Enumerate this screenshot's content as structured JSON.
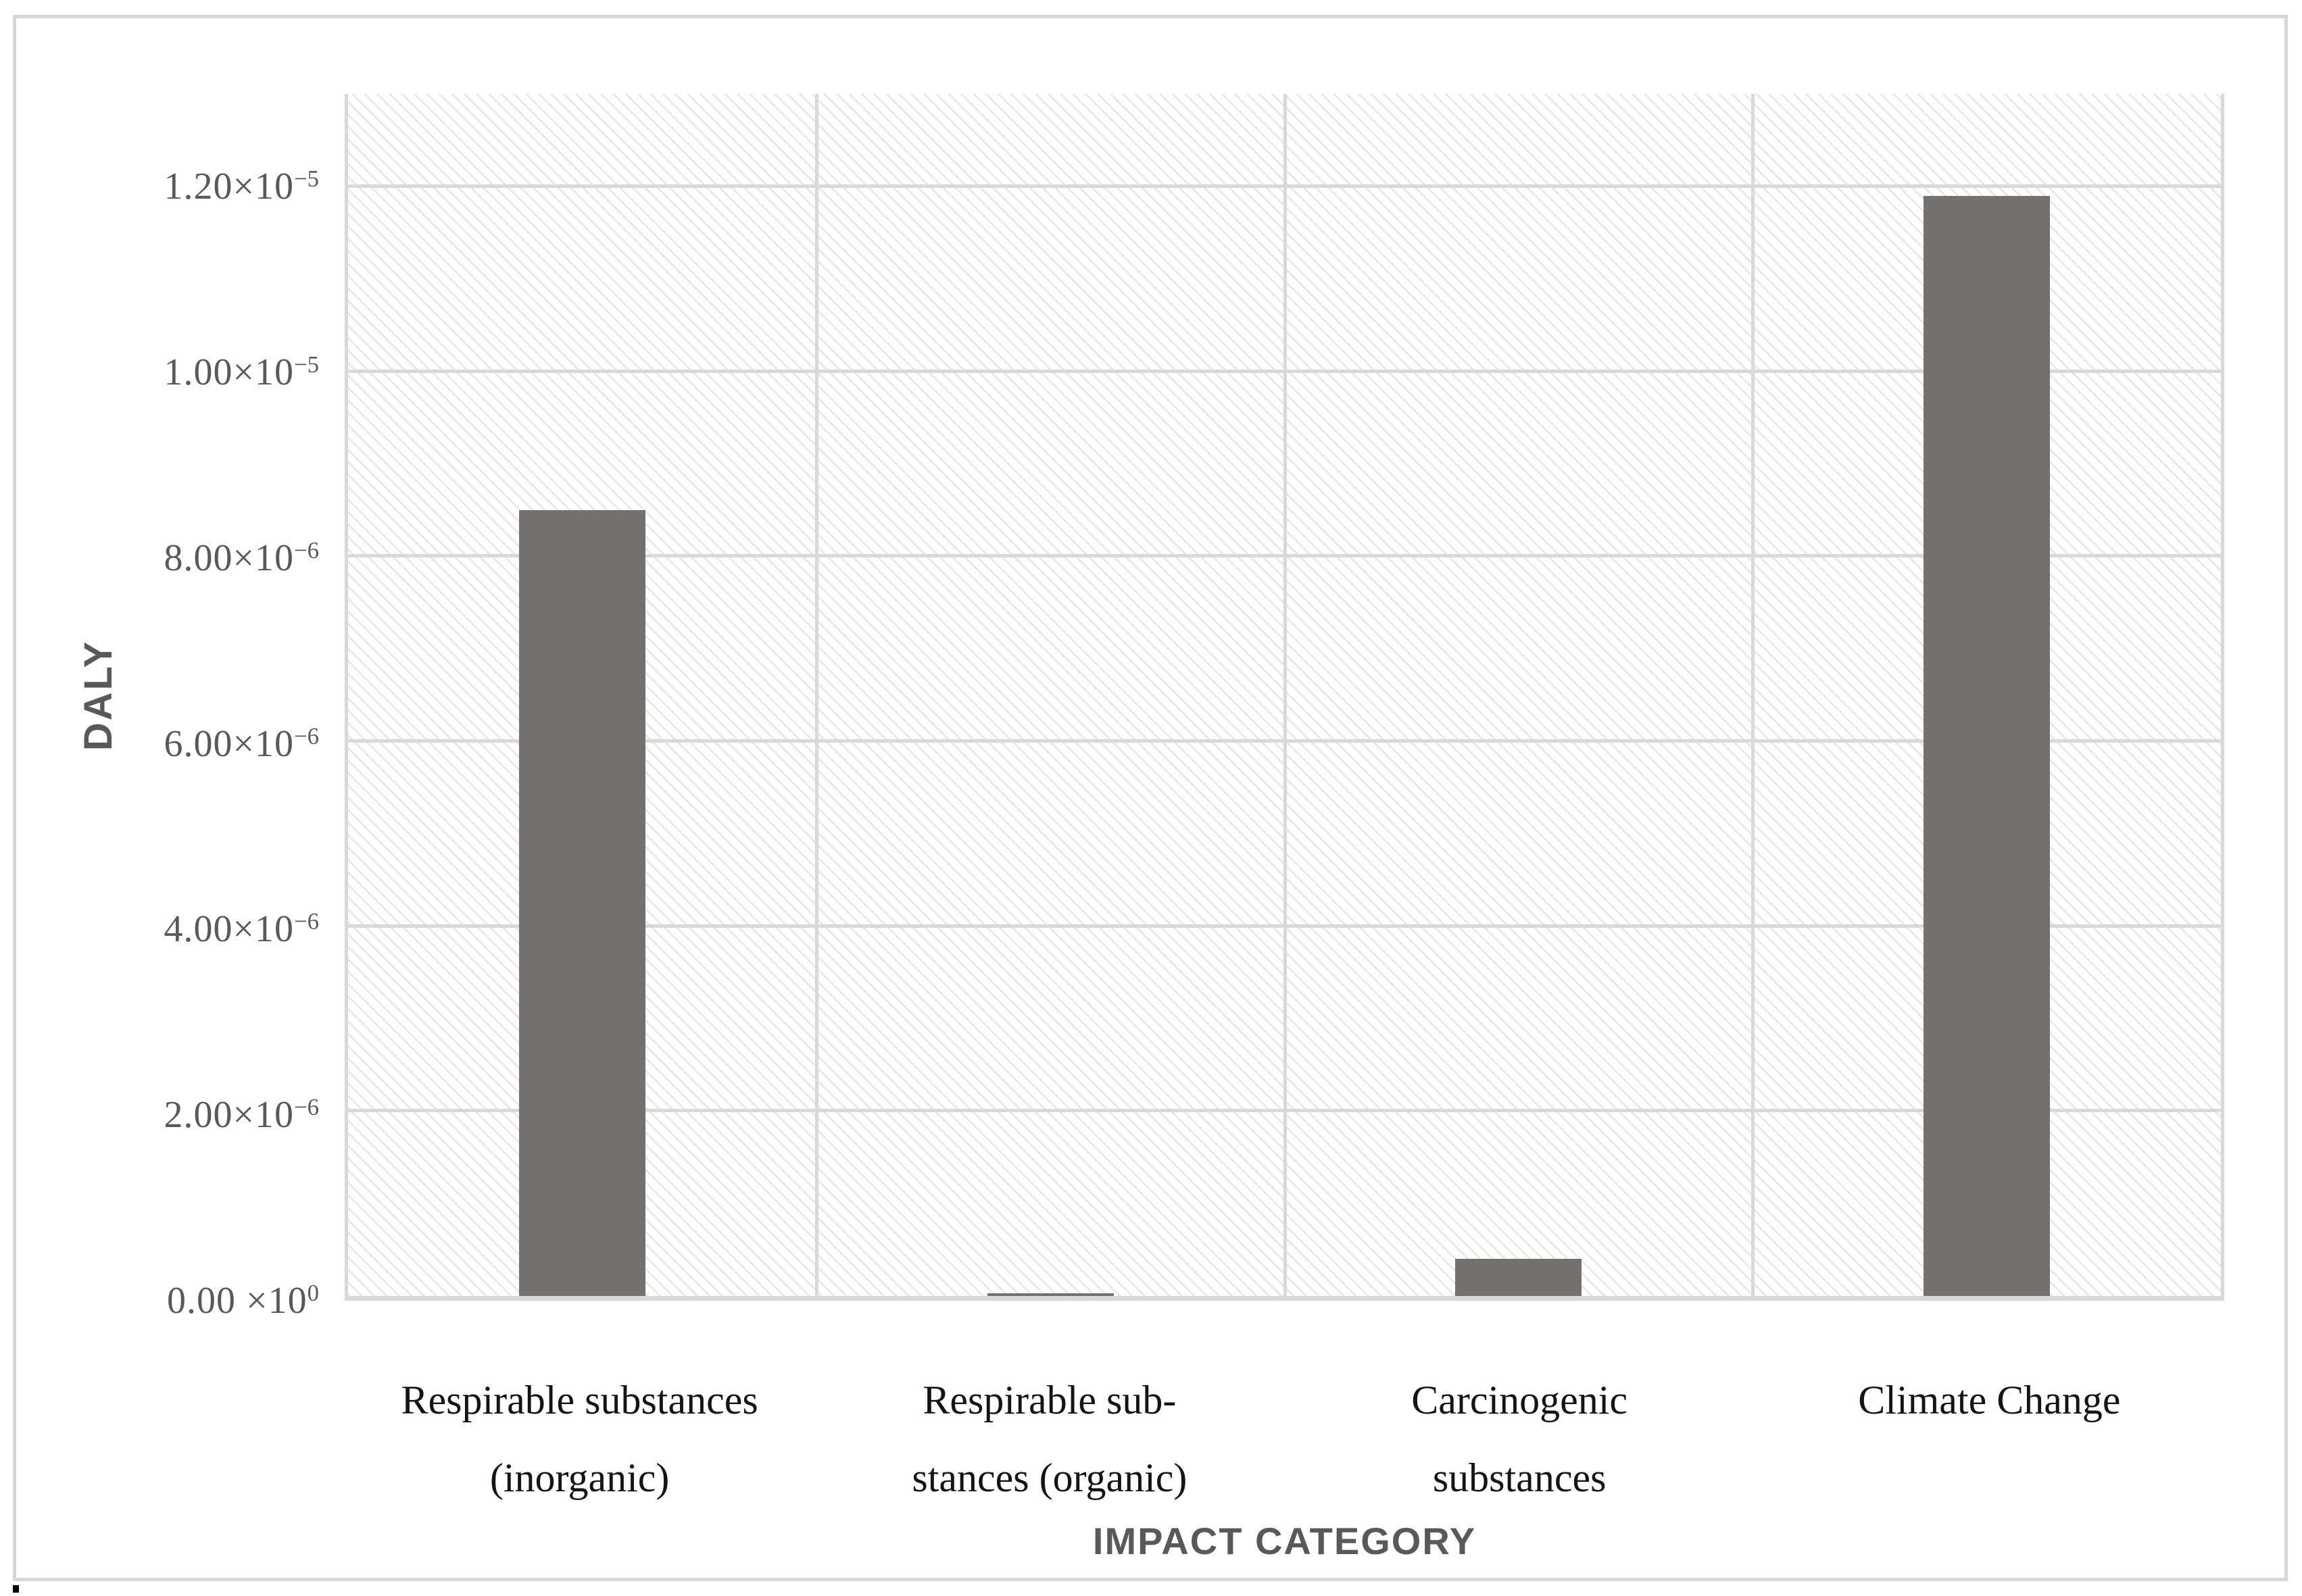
{
  "page": {
    "background_color": "#ffffff",
    "frame_border_color": "#d7d7d7"
  },
  "chart_data": {
    "type": "bar",
    "title": "",
    "xlabel": "IMPACT CATEGORY",
    "ylabel": "DALY",
    "categories": [
      "Respirable substances (inorganic)",
      "Respirable substances (organic)",
      "Carcinogenic substances",
      "Climate Change"
    ],
    "category_label_lines": [
      [
        "Respirable substances",
        "(inorganic)"
      ],
      [
        "Respirable sub-",
        "stances (organic)"
      ],
      [
        "Carcinogenic",
        "substances"
      ],
      [
        "Climate Change"
      ]
    ],
    "values": [
      8.5e-06,
      3e-08,
      4e-07,
      1.19e-05
    ],
    "unit": "DALY",
    "ylim": [
      0,
      1.3e-05
    ],
    "ytick_step": 2e-06,
    "yticks": [
      {
        "value": 0,
        "base": "0.00 ×10",
        "exp": "0"
      },
      {
        "value": 2e-06,
        "base": "2.00×10",
        "exp": "−6"
      },
      {
        "value": 4e-06,
        "base": "4.00×10",
        "exp": "−6"
      },
      {
        "value": 6e-06,
        "base": "6.00×10",
        "exp": "−6"
      },
      {
        "value": 8e-06,
        "base": "8.00×10",
        "exp": "−6"
      },
      {
        "value": 1e-05,
        "base": "1.00×10",
        "exp": "−5"
      },
      {
        "value": 1.2e-05,
        "base": "1.20×10",
        "exp": "−5"
      }
    ],
    "grid": true,
    "legend": false,
    "plot_hatch": "diagonal",
    "bar_color": "#747070",
    "gridline_color": "#d9d9d9",
    "axis_text_color": "#595959",
    "category_text_color": "#141414"
  }
}
